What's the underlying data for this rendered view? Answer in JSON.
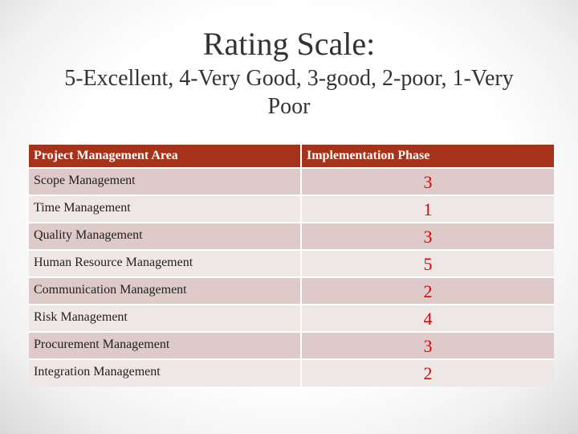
{
  "title": {
    "main": "Rating Scale:",
    "sub": "5-Excellent, 4-Very Good, 3-good, 2-poor, 1-Very Poor"
  },
  "table": {
    "headers": [
      "Project Management Area",
      "Implementation Phase"
    ],
    "rows": [
      {
        "area": "Scope Management",
        "value": "3"
      },
      {
        "area": "Time Management",
        "value": "1"
      },
      {
        "area": "Quality Management",
        "value": "3"
      },
      {
        "area": "Human Resource Management",
        "value": "5"
      },
      {
        "area": "Communication Management",
        "value": "2"
      },
      {
        "area": "Risk Management",
        "value": "4"
      },
      {
        "area": "Procurement Management",
        "value": "3"
      },
      {
        "area": "Integration Management",
        "value": "2"
      }
    ]
  },
  "colors": {
    "header_bg": "#a6321a",
    "row_dark": "#dfcaca",
    "row_light": "#efe6e6",
    "value_text": "#e00000"
  }
}
